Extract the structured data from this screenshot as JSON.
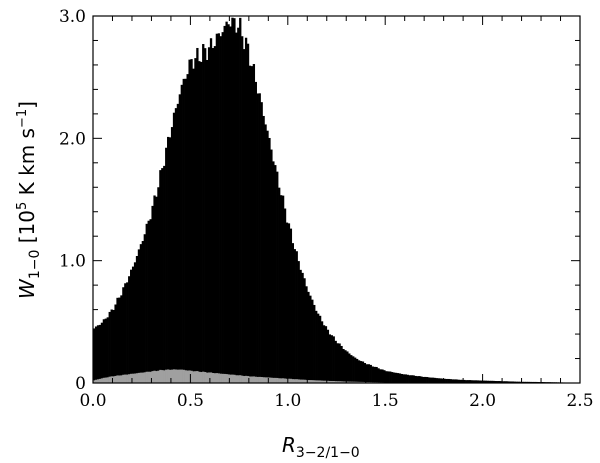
{
  "chart_data": {
    "type": "bar",
    "xlabel_main": "R",
    "xlabel_sub": "3−2/1−0",
    "ylabel_main": "W",
    "ylabel_sub": "1−0",
    "ylabel_unit_prefix": " [10",
    "ylabel_unit_exp": "5",
    "ylabel_unit_mid": " K km s",
    "ylabel_unit_exp2": "−1",
    "ylabel_unit_suffix": "]",
    "xlim": [
      0.0,
      2.5
    ],
    "ylim": [
      0.0,
      3.0
    ],
    "xticks": [
      "0.0",
      "0.5",
      "1.0",
      "1.5",
      "2.0",
      "2.5"
    ],
    "yticks": [
      "0",
      "1.0",
      "2.0",
      "3.0"
    ],
    "colors": {
      "total": "#000000",
      "subset": "#a0a0a0"
    },
    "series": [
      {
        "x": [
          0.0,
          0.05,
          0.1,
          0.15,
          0.2,
          0.25,
          0.3,
          0.35,
          0.4,
          0.45,
          0.5,
          0.55,
          0.6,
          0.65,
          0.7,
          0.75,
          0.8,
          0.85,
          0.9,
          0.95,
          1.0,
          1.05,
          1.1,
          1.15,
          1.2,
          1.25,
          1.3,
          1.35,
          1.4,
          1.45,
          1.5,
          1.6,
          1.7,
          1.8,
          1.9,
          2.0,
          2.1,
          2.2,
          2.3,
          2.4,
          2.5
        ],
        "values": [
          0.44,
          0.5,
          0.6,
          0.75,
          0.93,
          1.15,
          1.4,
          1.72,
          2.08,
          2.4,
          2.62,
          2.68,
          2.74,
          2.85,
          2.96,
          2.92,
          2.7,
          2.38,
          2.02,
          1.66,
          1.32,
          1.02,
          0.77,
          0.58,
          0.44,
          0.34,
          0.26,
          0.2,
          0.16,
          0.13,
          0.1,
          0.07,
          0.05,
          0.035,
          0.025,
          0.02,
          0.015,
          0.01,
          0.008,
          0.005,
          0.0
        ]
      },
      {
        "x": [
          0.0,
          0.05,
          0.1,
          0.2,
          0.3,
          0.35,
          0.4,
          0.45,
          0.5,
          0.6,
          0.7,
          0.8,
          0.9,
          1.0,
          1.1,
          1.2,
          1.3,
          1.4,
          1.5,
          1.6,
          2.5
        ],
        "values": [
          0.02,
          0.04,
          0.055,
          0.075,
          0.095,
          0.105,
          0.11,
          0.11,
          0.1,
          0.085,
          0.07,
          0.055,
          0.045,
          0.035,
          0.025,
          0.018,
          0.012,
          0.008,
          0.004,
          0.0,
          0.0
        ]
      }
    ]
  }
}
